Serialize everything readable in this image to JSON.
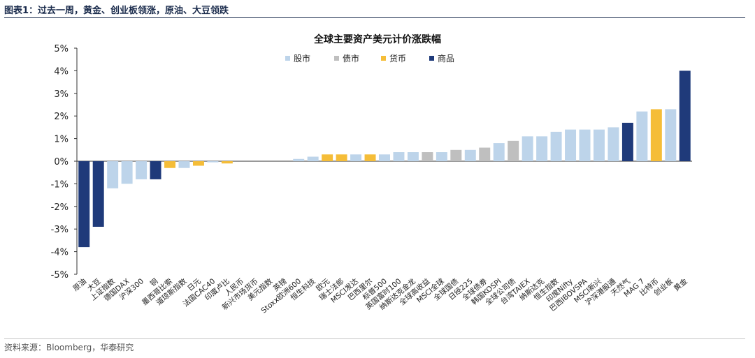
{
  "header": {
    "title": "图表1：过去一周，黄金、创业板领涨，原油、大豆领跌"
  },
  "footer": {
    "source": "资料来源：Bloomberg，华泰研究"
  },
  "colors": {
    "股市": "#bdd4ea",
    "债市": "#bfbfbf",
    "货币": "#f5bd38",
    "商品": "#1f3a7a"
  },
  "chart_data": {
    "type": "bar",
    "title": "全球主要资产美元计价涨跌幅",
    "legend": [
      "股市",
      "债市",
      "货币",
      "商品"
    ],
    "legend_position": "top",
    "ylim": [
      -5,
      5
    ],
    "yticks": [
      5,
      4,
      3,
      2,
      1,
      0,
      -1,
      -2,
      -3,
      -4,
      -5
    ],
    "ytick_format": "percent",
    "grid": false,
    "categories": [
      "原油",
      "大豆",
      "上证指数",
      "德国DAX",
      "沪深300",
      "铜",
      "墨西哥比索",
      "道琼斯指数",
      "日元",
      "法国CAC40",
      "印度卢比",
      "人民币",
      "新兴市场货币",
      "美元指数",
      "英镑",
      "Stoxx欧洲600",
      "恒生科技",
      "欧元",
      "瑞士法郎",
      "MSCI发达",
      "巴西里尔",
      "标普500",
      "英国富时100",
      "纳斯达克金龙",
      "全球高收益",
      "MSCI全球",
      "全球国债",
      "日经225",
      "全球债券",
      "韩国KOSPI",
      "全球公司债",
      "台湾TAIEX",
      "纳斯达克",
      "恒生指数",
      "印度Nifty",
      "巴西IBOVSPA",
      "MSCI新兴",
      "沪深港股通",
      "天然气",
      "MAG 7",
      "比特币",
      "创业板",
      "黄金"
    ],
    "values": [
      -3.8,
      -2.9,
      -1.2,
      -1.0,
      -0.8,
      -0.8,
      -0.3,
      -0.3,
      -0.2,
      -0.05,
      -0.1,
      0,
      0,
      0,
      0,
      0.1,
      0.2,
      0.3,
      0.3,
      0.3,
      0.3,
      0.3,
      0.4,
      0.4,
      0.4,
      0.4,
      0.5,
      0.5,
      0.6,
      0.8,
      0.9,
      1.1,
      1.1,
      1.3,
      1.4,
      1.4,
      1.4,
      1.5,
      1.7,
      2.2,
      2.3,
      2.3,
      4.0
    ],
    "groups": [
      "商品",
      "商品",
      "股市",
      "股市",
      "股市",
      "商品",
      "货币",
      "股市",
      "货币",
      "股市",
      "货币",
      "货币",
      "货币",
      "货币",
      "货币",
      "股市",
      "股市",
      "货币",
      "货币",
      "股市",
      "货币",
      "股市",
      "股市",
      "股市",
      "债市",
      "股市",
      "债市",
      "股市",
      "债市",
      "股市",
      "债市",
      "股市",
      "股市",
      "股市",
      "股市",
      "股市",
      "股市",
      "股市",
      "商品",
      "股市",
      "货币",
      "股市",
      "商品"
    ]
  }
}
